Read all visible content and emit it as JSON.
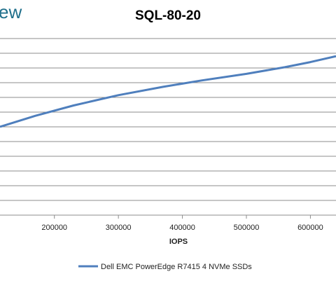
{
  "header": {
    "logo_fragment": "ew"
  },
  "chart_data": {
    "type": "line",
    "title": "SQL-80-20",
    "xlabel": "IOPS",
    "ylabel": "",
    "x_ticks": [
      200000,
      300000,
      400000,
      500000,
      600000
    ],
    "xlim": [
      115000,
      640000
    ],
    "series": [
      {
        "name": "Dell EMC PowerEdge R7415 4 NVMe SSDs",
        "color": "#4f7fbd",
        "x": [
          115000,
          170000,
          230000,
          300000,
          370000,
          430000,
          500000,
          560000,
          600000,
          640000
        ],
        "y": [
          6.0,
          6.75,
          7.45,
          8.15,
          8.72,
          9.15,
          9.6,
          10.05,
          10.4,
          10.8
        ]
      }
    ],
    "ylim": [
      0,
      12
    ],
    "grid": true,
    "legend_position": "bottom"
  }
}
